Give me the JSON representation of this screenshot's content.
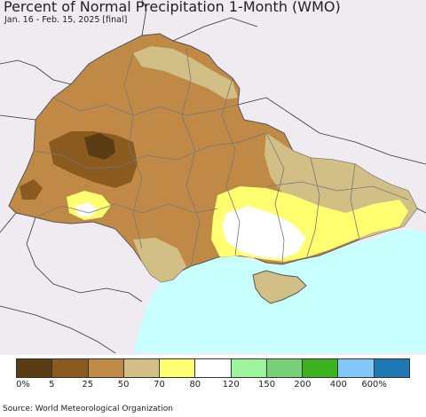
{
  "header": {
    "title": "Percent of Normal Precipitation 1-Month (WMO)",
    "subtitle": "Jan. 16 - Feb. 15, 2025 [final]"
  },
  "legend": {
    "items": [
      {
        "color": "#5a3d14",
        "label": "0%"
      },
      {
        "color": "#8b5a1e",
        "label": "5"
      },
      {
        "color": "#c08a46",
        "label": "25"
      },
      {
        "color": "#d2bf86",
        "label": "50"
      },
      {
        "color": "#ffff70",
        "label": "70"
      },
      {
        "color": "#ffffff",
        "label": "80"
      },
      {
        "color": "#9cf59c",
        "label": "120"
      },
      {
        "color": "#78d078",
        "label": "150"
      },
      {
        "color": "#3cb21e",
        "label": "200"
      },
      {
        "color": "#82c8fa",
        "label": "400"
      },
      {
        "color": "#1e78b4",
        "label": "600%"
      }
    ]
  },
  "colors": {
    "water": "#c8ffff",
    "outside": "#efebf0"
  },
  "source": "Source: World Meteorological Organization"
}
